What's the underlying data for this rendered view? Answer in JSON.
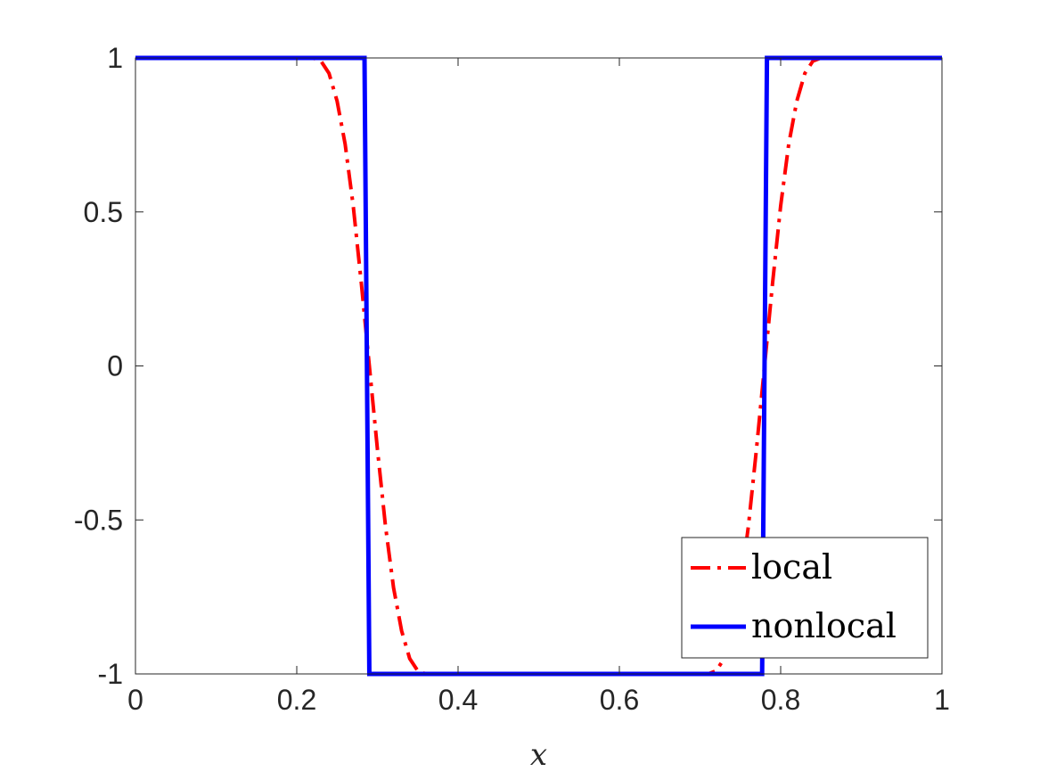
{
  "chart_data": {
    "type": "line",
    "title": "",
    "xlabel": "x",
    "ylabel": "",
    "xlim": [
      0,
      1
    ],
    "ylim": [
      -1,
      1
    ],
    "xticks": [
      0,
      0.2,
      0.4,
      0.6,
      0.8,
      1
    ],
    "xtick_labels": [
      "0",
      "0.2",
      "0.4",
      "0.6",
      "0.8",
      "1"
    ],
    "yticks": [
      -1,
      -0.5,
      0,
      0.5,
      1
    ],
    "ytick_labels": [
      "-1",
      "-0.5",
      "0",
      "0.5",
      "1"
    ],
    "grid": false,
    "legend_position": "bottom-right",
    "series": [
      {
        "name": "local",
        "color": "#ff0000",
        "style": "dash-dot",
        "x": [
          0,
          0.22,
          0.23,
          0.24,
          0.25,
          0.26,
          0.27,
          0.28,
          0.29,
          0.3,
          0.31,
          0.32,
          0.33,
          0.34,
          0.35,
          0.36,
          0.7,
          0.71,
          0.72,
          0.73,
          0.74,
          0.75,
          0.76,
          0.77,
          0.78,
          0.79,
          0.8,
          0.81,
          0.82,
          0.83,
          0.84,
          0.85,
          1
        ],
        "y": [
          1,
          1,
          0.99,
          0.95,
          0.86,
          0.72,
          0.52,
          0.27,
          0.0,
          -0.27,
          -0.52,
          -0.72,
          -0.86,
          -0.95,
          -0.99,
          -1,
          -1,
          -1,
          -0.99,
          -0.95,
          -0.86,
          -0.72,
          -0.52,
          -0.27,
          0.0,
          0.27,
          0.52,
          0.72,
          0.86,
          0.95,
          0.99,
          1,
          1
        ]
      },
      {
        "name": "nonlocal",
        "color": "#0000ff",
        "style": "solid",
        "x": [
          0,
          0.284,
          0.29,
          0.777,
          0.783,
          1
        ],
        "y": [
          1,
          1,
          -1,
          -1,
          1,
          1
        ]
      }
    ]
  }
}
